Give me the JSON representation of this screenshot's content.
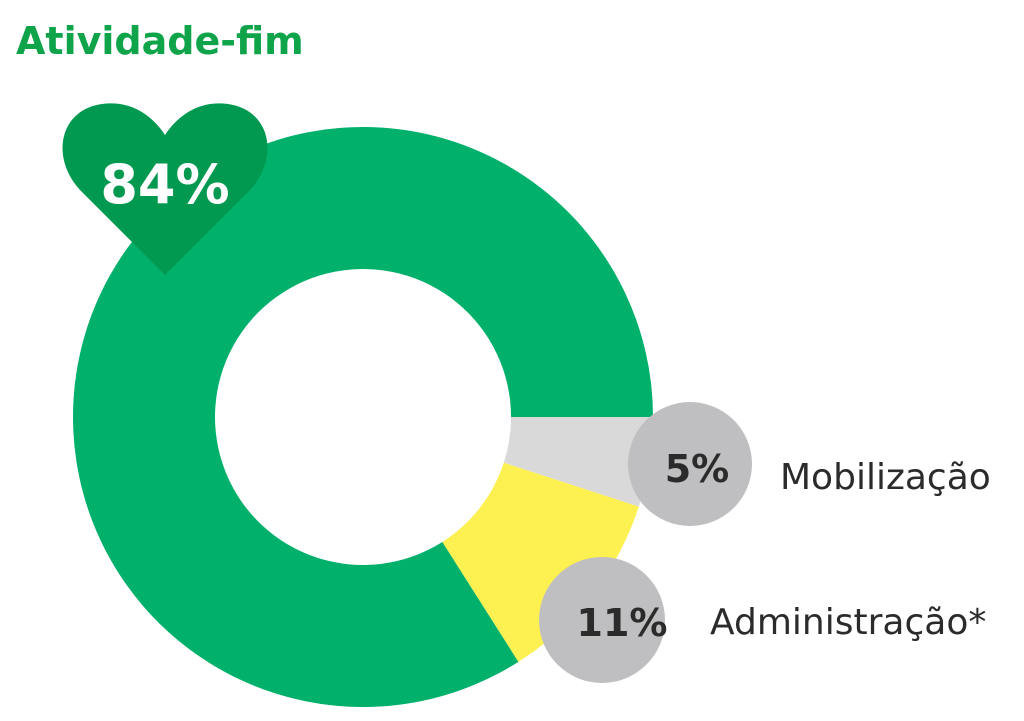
{
  "chart_data": {
    "type": "pie",
    "title": "Atividade-fim",
    "slices": [
      {
        "label": "",
        "value": 84,
        "value_label": "84%",
        "color": "#00b06b"
      },
      {
        "label": "Mobilização",
        "value": 5,
        "value_label": "5%",
        "color": "#d9d9d9"
      },
      {
        "label": "Administração*",
        "value": 11,
        "value_label": "11%",
        "color": "#fdf051"
      }
    ]
  },
  "colors": {
    "title": "#0fa34a",
    "heart": "#00994f",
    "bubble": "#bfbfc1"
  },
  "icons": {
    "heart": "heart-icon"
  }
}
